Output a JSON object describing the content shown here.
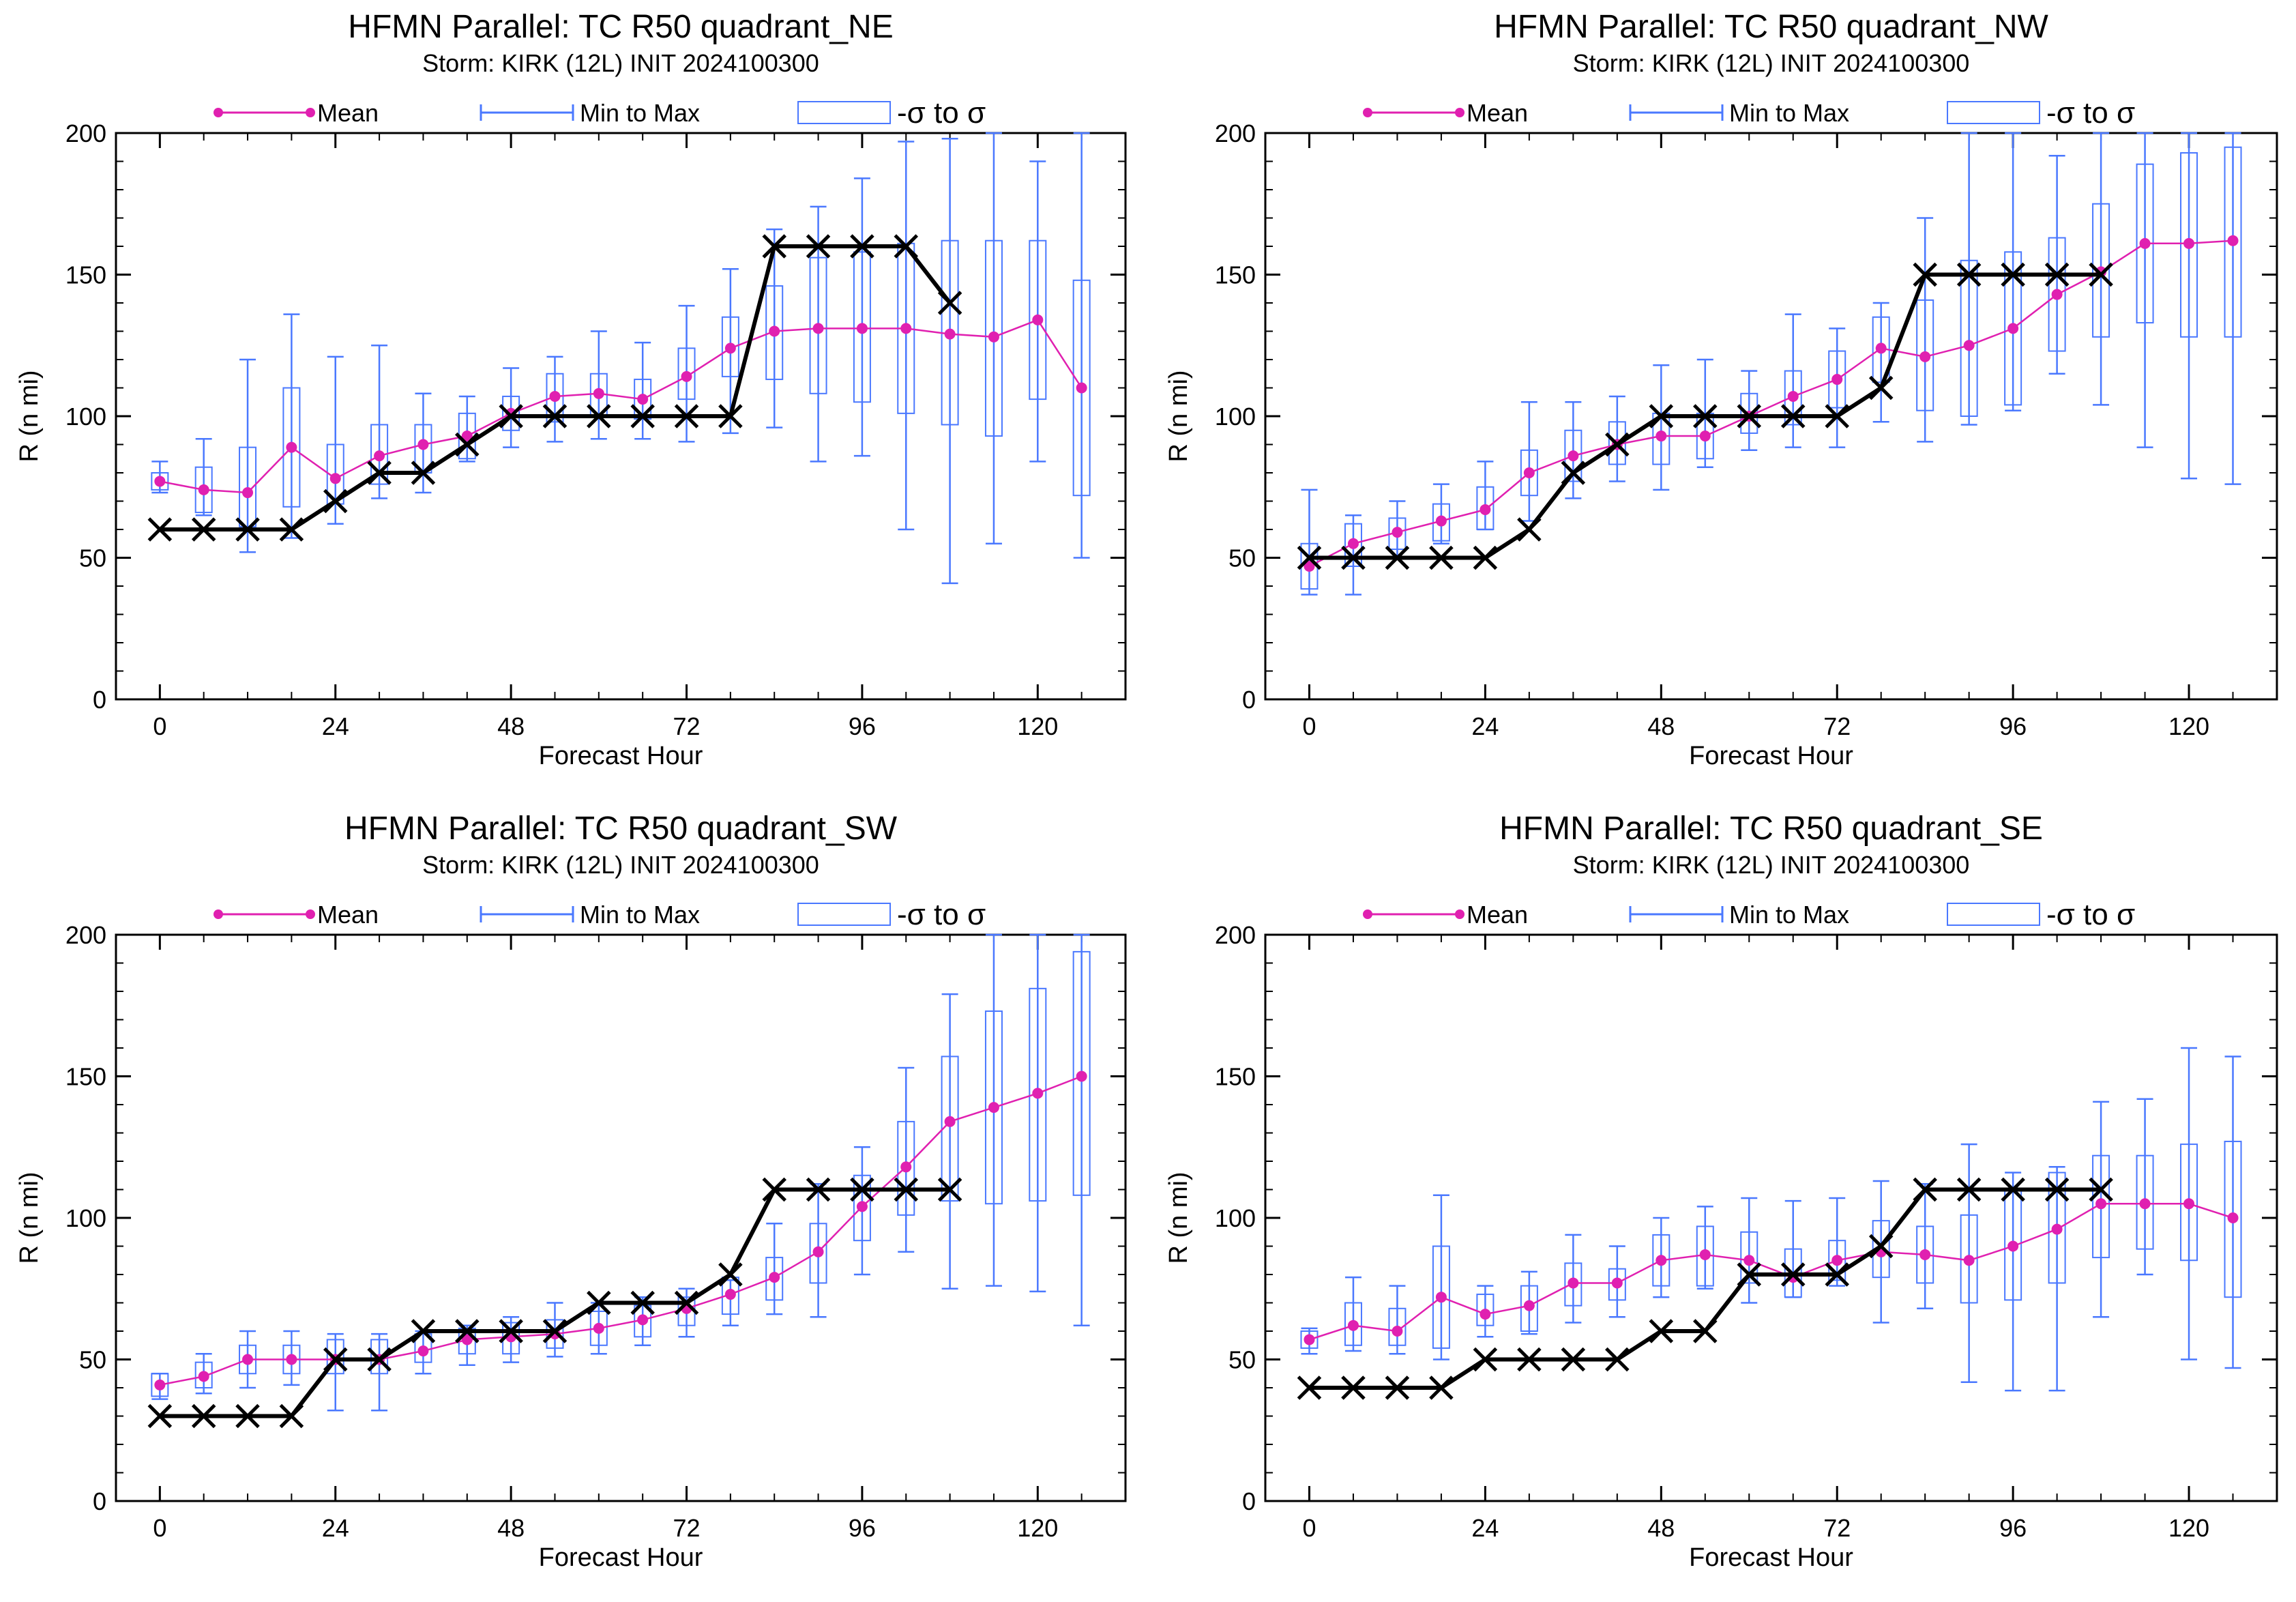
{
  "legend": {
    "mean_label": "Mean",
    "minmax_label": "Min to Max",
    "sigma_label": "-σ to σ"
  },
  "colors": {
    "mean": "#e020b0",
    "minmax": "#4a78ff",
    "box": "#4a78ff",
    "observed": "#000000"
  },
  "chart_data": [
    {
      "type": "line",
      "title": "HFMN Parallel: TC  R50 quadrant_NE",
      "subtitle": "Storm: KIRK (12L) INIT 2024100300",
      "xlabel": "Forecast Hour",
      "ylabel": "R (n mi)",
      "xlim": [
        -6,
        132
      ],
      "ylim": [
        0,
        200
      ],
      "xticks": [
        0,
        24,
        48,
        72,
        96,
        120
      ],
      "yticks": [
        0,
        50,
        100,
        150,
        200
      ],
      "hours": [
        0,
        6,
        12,
        18,
        24,
        30,
        36,
        42,
        48,
        54,
        60,
        66,
        72,
        78,
        84,
        90,
        96,
        102,
        108,
        114,
        120,
        126
      ],
      "mean": [
        77,
        74,
        73,
        89,
        78,
        86,
        90,
        93,
        101,
        107,
        108,
        106,
        114,
        124,
        130,
        131,
        131,
        131,
        129,
        128,
        134,
        110
      ],
      "min": [
        73,
        65,
        52,
        57,
        62,
        71,
        73,
        84,
        89,
        91,
        92,
        92,
        91,
        94,
        96,
        84,
        86,
        60,
        41,
        55,
        84,
        50
      ],
      "max": [
        84,
        92,
        120,
        136,
        121,
        125,
        108,
        107,
        117,
        121,
        130,
        126,
        139,
        152,
        166,
        174,
        184,
        197,
        198,
        200,
        190,
        200
      ],
      "sd_low": [
        74,
        66,
        61,
        68,
        69,
        76,
        80,
        85,
        95,
        98,
        100,
        99,
        106,
        114,
        113,
        108,
        105,
        101,
        97,
        93,
        106,
        72
      ],
      "sd_high": [
        80,
        82,
        89,
        110,
        90,
        97,
        97,
        101,
        107,
        115,
        115,
        113,
        124,
        135,
        146,
        156,
        158,
        161,
        162,
        162,
        162,
        148
      ],
      "obs_hours": [
        0,
        6,
        12,
        18,
        24,
        30,
        36,
        42,
        48,
        54,
        60,
        66,
        72,
        78,
        84,
        90,
        96,
        102,
        108
      ],
      "obs": [
        60,
        60,
        60,
        60,
        70,
        80,
        80,
        90,
        100,
        100,
        100,
        100,
        100,
        100,
        160,
        160,
        160,
        160,
        140
      ]
    },
    {
      "type": "line",
      "title": "HFMN Parallel: TC  R50 quadrant_NW",
      "subtitle": "Storm: KIRK (12L) INIT 2024100300",
      "xlabel": "Forecast Hour",
      "ylabel": "R (n mi)",
      "xlim": [
        -6,
        132
      ],
      "ylim": [
        0,
        200
      ],
      "xticks": [
        0,
        24,
        48,
        72,
        96,
        120
      ],
      "yticks": [
        0,
        50,
        100,
        150,
        200
      ],
      "hours": [
        0,
        6,
        12,
        18,
        24,
        30,
        36,
        42,
        48,
        54,
        60,
        66,
        72,
        78,
        84,
        90,
        96,
        102,
        108,
        114,
        120,
        126
      ],
      "mean": [
        47,
        55,
        59,
        63,
        67,
        80,
        86,
        90,
        93,
        93,
        100,
        107,
        113,
        124,
        121,
        125,
        131,
        143,
        151,
        161,
        161,
        162
      ],
      "min": [
        37,
        37,
        50,
        55,
        60,
        63,
        71,
        77,
        74,
        82,
        88,
        89,
        89,
        98,
        91,
        97,
        102,
        115,
        104,
        89,
        78,
        76
      ],
      "max": [
        74,
        65,
        70,
        76,
        84,
        105,
        105,
        107,
        118,
        120,
        116,
        136,
        131,
        140,
        170,
        200,
        200,
        192,
        200,
        200,
        200,
        200
      ],
      "sd_low": [
        39,
        47,
        53,
        56,
        60,
        72,
        77,
        83,
        83,
        85,
        94,
        97,
        103,
        112,
        102,
        100,
        104,
        123,
        128,
        133,
        128,
        128
      ],
      "sd_high": [
        55,
        62,
        64,
        69,
        75,
        88,
        95,
        98,
        101,
        101,
        108,
        116,
        123,
        135,
        141,
        155,
        158,
        163,
        175,
        189,
        193,
        195
      ],
      "obs_hours": [
        0,
        6,
        12,
        18,
        24,
        30,
        36,
        42,
        48,
        54,
        60,
        66,
        72,
        78,
        84,
        90,
        96,
        102,
        108
      ],
      "obs": [
        50,
        50,
        50,
        50,
        50,
        60,
        80,
        90,
        100,
        100,
        100,
        100,
        100,
        110,
        150,
        150,
        150,
        150,
        150
      ]
    },
    {
      "type": "line",
      "title": "HFMN Parallel: TC  R50 quadrant_SW",
      "subtitle": "Storm: KIRK (12L) INIT 2024100300",
      "xlabel": "Forecast Hour",
      "ylabel": "R (n mi)",
      "xlim": [
        -6,
        132
      ],
      "ylim": [
        0,
        200
      ],
      "xticks": [
        0,
        24,
        48,
        72,
        96,
        120
      ],
      "yticks": [
        0,
        50,
        100,
        150,
        200
      ],
      "hours": [
        0,
        6,
        12,
        18,
        24,
        30,
        36,
        42,
        48,
        54,
        60,
        66,
        72,
        78,
        84,
        90,
        96,
        102,
        108,
        114,
        120,
        126
      ],
      "mean": [
        41,
        44,
        50,
        50,
        50,
        50,
        53,
        57,
        58,
        59,
        61,
        64,
        68,
        73,
        79,
        88,
        104,
        118,
        134,
        139,
        144,
        150
      ],
      "min": [
        36,
        38,
        40,
        41,
        32,
        32,
        45,
        48,
        49,
        51,
        52,
        55,
        58,
        62,
        66,
        65,
        80,
        88,
        75,
        76,
        74,
        62
      ],
      "max": [
        45,
        52,
        60,
        60,
        59,
        59,
        60,
        62,
        65,
        70,
        70,
        72,
        75,
        78,
        98,
        112,
        125,
        153,
        179,
        200,
        200,
        200
      ],
      "sd_low": [
        37,
        40,
        45,
        45,
        45,
        45,
        49,
        52,
        52,
        54,
        55,
        58,
        62,
        66,
        71,
        77,
        92,
        101,
        106,
        105,
        106,
        108
      ],
      "sd_high": [
        45,
        49,
        55,
        55,
        57,
        57,
        59,
        61,
        63,
        64,
        67,
        69,
        72,
        79,
        86,
        98,
        115,
        134,
        157,
        173,
        181,
        194
      ],
      "obs_hours": [
        0,
        6,
        12,
        18,
        24,
        30,
        36,
        42,
        48,
        54,
        60,
        66,
        72,
        78,
        84,
        90,
        96,
        102,
        108
      ],
      "obs": [
        30,
        30,
        30,
        30,
        50,
        50,
        60,
        60,
        60,
        60,
        70,
        70,
        70,
        80,
        110,
        110,
        110,
        110,
        110
      ]
    },
    {
      "type": "line",
      "title": "HFMN Parallel: TC  R50 quadrant_SE",
      "subtitle": "Storm: KIRK (12L) INIT 2024100300",
      "xlabel": "Forecast Hour",
      "ylabel": "R (n mi)",
      "xlim": [
        -6,
        132
      ],
      "ylim": [
        0,
        200
      ],
      "xticks": [
        0,
        24,
        48,
        72,
        96,
        120
      ],
      "yticks": [
        0,
        50,
        100,
        150,
        200
      ],
      "hours": [
        0,
        6,
        12,
        18,
        24,
        30,
        36,
        42,
        48,
        54,
        60,
        66,
        72,
        78,
        84,
        90,
        96,
        102,
        108,
        114,
        120,
        126
      ],
      "mean": [
        57,
        62,
        60,
        72,
        66,
        69,
        77,
        77,
        85,
        87,
        85,
        79,
        85,
        88,
        87,
        85,
        90,
        96,
        105,
        105,
        105,
        100
      ],
      "min": [
        52,
        53,
        52,
        50,
        58,
        59,
        63,
        65,
        72,
        75,
        70,
        72,
        76,
        63,
        68,
        42,
        39,
        39,
        65,
        80,
        50,
        47
      ],
      "max": [
        61,
        79,
        76,
        108,
        76,
        81,
        94,
        90,
        100,
        104,
        107,
        106,
        107,
        113,
        112,
        126,
        116,
        118,
        141,
        142,
        160,
        157
      ],
      "sd_low": [
        54,
        55,
        55,
        54,
        62,
        60,
        69,
        71,
        76,
        76,
        77,
        72,
        78,
        79,
        77,
        70,
        71,
        77,
        86,
        89,
        85,
        72
      ],
      "sd_high": [
        60,
        70,
        68,
        90,
        73,
        76,
        84,
        82,
        94,
        97,
        95,
        89,
        92,
        99,
        97,
        101,
        110,
        116,
        122,
        122,
        126,
        127
      ],
      "obs_hours": [
        0,
        6,
        12,
        18,
        24,
        30,
        36,
        42,
        48,
        54,
        60,
        66,
        72,
        78,
        84,
        90,
        96,
        102,
        108
      ],
      "obs": [
        40,
        40,
        40,
        40,
        50,
        50,
        50,
        50,
        60,
        60,
        80,
        80,
        80,
        90,
        110,
        110,
        110,
        110,
        110
      ]
    }
  ]
}
